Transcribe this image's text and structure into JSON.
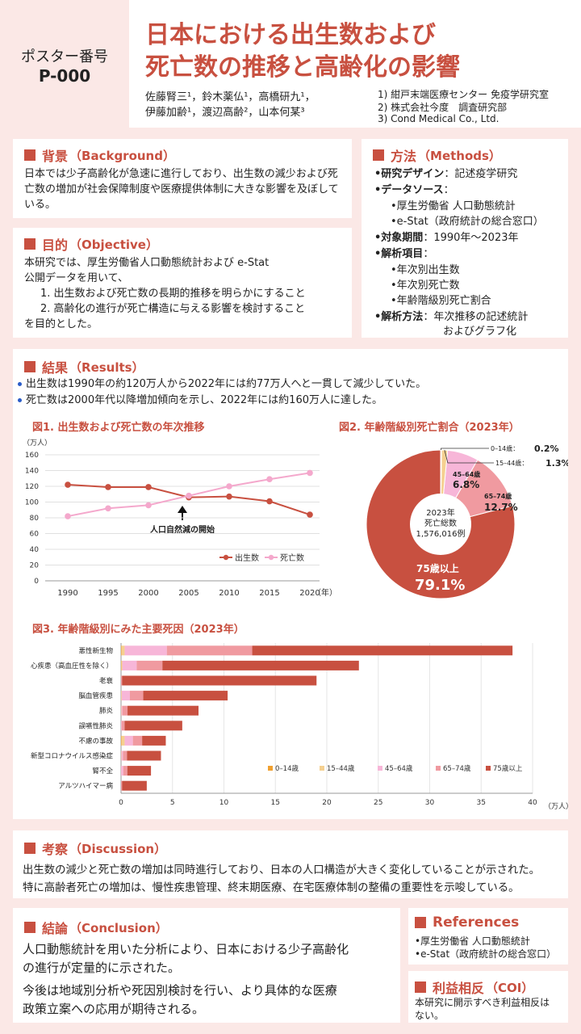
{
  "header": {
    "poster_label": "ポスター番号",
    "poster_number": "P-000",
    "title_line1": "日本における出生数および",
    "title_line2": "死亡数の推移と高齢化の影響",
    "authors_line1": "佐藤腎三¹，鈴木薬仏¹，高橋研九¹，",
    "authors_line2": "伊藤加齢¹，渡辺高齢²，山本何某³",
    "affiliations": [
      "1) 紺戸末端医療センター 免疫学研究室",
      "2) 株式会社今度　調査研究部",
      "3) Cond Medical Co., Ltd."
    ]
  },
  "background": {
    "title": "背景",
    "title_en": "（Background）",
    "text": "日本では少子高齢化が急速に進行しており、出生数の減少および死亡数の増加が社会保障制度や医療提供体制に大きな影響を及ぼしている。"
  },
  "objective": {
    "title": "目的",
    "title_en": "（Objective）",
    "line1": "本研究では、厚生労働省人口動態統計および e-Stat",
    "line2": "公開データを用いて、",
    "item1": "1. 出生数および死亡数の長期的推移を明らかにすること",
    "item2": "2. 高齢化の進行が死亡構造に与える影響を検討すること",
    "line3": "を目的とした。"
  },
  "methods": {
    "title": "方法",
    "title_en": "（Methods）",
    "design_label": "•研究デザイン",
    "design_value": "：記述疫学研究",
    "source_label": "•データソース",
    "source_colon": "：",
    "source1": "•厚生労働省 人口動態統計",
    "source2": "•e-Stat（政府統計の総合窓口）",
    "period_label": "•対象期間",
    "period_value": "：1990年～2023年",
    "items_label": "•解析項目",
    "items_colon": "：",
    "item1": "•年次別出生数",
    "item2": "•年次別死亡数",
    "item3": "•年齢階級別死亡割合",
    "method_label": "•解析方法",
    "method_value1": "：年次推移の記述統計",
    "method_value2": "およびグラフ化"
  },
  "results": {
    "title": "結果",
    "title_en": "（Results）",
    "bullet1": "出生数は1990年の約120万人から2022年には約77万人へと一貫して減少していた。",
    "bullet2": "死亡数は2000年代以降増加傾向を示し、2022年には約160万人に達した。"
  },
  "fig1": {
    "title": "図1.  出生数および死亡数の年次推移",
    "unit": "（万人）",
    "x_unit": "（年）",
    "annotation": "人口自然減の開始",
    "legend_births": "出生数",
    "legend_deaths": "死亡数"
  },
  "fig2": {
    "title": "図2.  年齢階級別死亡割合（2023年）",
    "center_line1": "2023年",
    "center_line2": "死亡総数",
    "center_line3": "1,576,016例"
  },
  "fig3": {
    "title": "図3.  年齢階級別にみた主要死因（2023年）",
    "x_unit": "（万人）"
  },
  "discussion": {
    "title": "考察",
    "title_en": "（Discussion）",
    "line1": "出生数の減少と死亡数の増加は同時進行しており、日本の人口構造が大きく変化していることが示された。",
    "line2": "特に高齢者死亡の増加は、慢性疾患管理、終末期医療、在宅医療体制の整備の重要性を示唆している。"
  },
  "conclusion": {
    "title": "結論",
    "title_en": "（Conclusion）",
    "para1_line1": "人口動態統計を用いた分析により、日本における少子高齢化",
    "para1_line2": "の進行が定量的に示された。",
    "para2_line1": "今後は地域別分析や死因別検討を行い、より具体的な医療",
    "para2_line2": "政策立案への応用が期待される。"
  },
  "references": {
    "title": "References",
    "item1": "•厚生労働省 人口動態統計",
    "item2": "•e-Stat（政府統計の総合窓口）"
  },
  "coi": {
    "title": "利益相反",
    "title_en": "（COI）",
    "line1": "本研究に開示すべき利益相反は",
    "line2": "ない。"
  },
  "colors": {
    "accent": "#c85040",
    "births": "#c85040",
    "deaths": "#f4a8cc",
    "age_0_14": "#f0a030",
    "age_15_44": "#f5d090",
    "age_45_64": "#f7b6d8",
    "age_65_74": "#f09aa0",
    "age_75": "#c85040"
  },
  "chart_data": [
    {
      "type": "line",
      "title": "図1.  出生数および死亡数の年次推移",
      "ylabel": "（万人）",
      "xlabel": "（年）",
      "x": [
        1990,
        1995,
        2000,
        2005,
        2010,
        2015,
        2020
      ],
      "ylim": [
        0,
        160
      ],
      "yticks": [
        0,
        20,
        40,
        60,
        80,
        100,
        120,
        140,
        160
      ],
      "grid": true,
      "legend": "bottom-right",
      "series": [
        {
          "name": "出生数",
          "values": [
            122,
            119,
            119,
            106,
            107,
            101,
            84
          ]
        },
        {
          "name": "死亡数",
          "values": [
            82,
            92,
            96,
            108,
            120,
            129,
            137
          ]
        }
      ],
      "annotation": {
        "text": "人口自然減の開始",
        "x": 2005
      }
    },
    {
      "type": "pie",
      "title": "図2.  年齢階級別死亡割合（2023年）",
      "total_label": "1,576,016例",
      "slices": [
        {
          "label": "0–14歳",
          "value": 0.2,
          "value_label": "0.2%"
        },
        {
          "label": "15–44歳",
          "value": 1.3,
          "value_label": "1.3%"
        },
        {
          "label": "45–64歳",
          "value": 6.8,
          "value_label": "6.8%"
        },
        {
          "label": "65–74歳",
          "value": 12.7,
          "value_label": "12.7%"
        },
        {
          "label": "75歳以上",
          "value": 79.1,
          "value_label": "79.1%"
        }
      ]
    },
    {
      "type": "bar",
      "orientation": "horizontal",
      "stacked": true,
      "title": "図3.  年齢階級別にみた主要死因（2023年）",
      "xlabel": "（万人）",
      "xlim": [
        0,
        40
      ],
      "xticks": [
        0,
        5,
        10,
        15,
        20,
        25,
        30,
        35,
        40
      ],
      "legend": "bottom-right",
      "categories": [
        "悪性新生物",
        "心疾患（高血圧性を除く）",
        "老衰",
        "脳血管疾患",
        "肺炎",
        "誤嚥性肺炎",
        "不慮の事故",
        "新型コロナウイルス感染症",
        "腎不全",
        "アルツハイマー病"
      ],
      "series": [
        {
          "name": "0–14歳",
          "values": [
            0.05,
            0.02,
            0,
            0.01,
            0.01,
            0,
            0.05,
            0.01,
            0,
            0
          ]
        },
        {
          "name": "15–44歳",
          "values": [
            0.3,
            0.1,
            0,
            0.05,
            0.02,
            0,
            0.3,
            0.02,
            0.01,
            0
          ]
        },
        {
          "name": "45–64歳",
          "values": [
            4.1,
            1.4,
            0,
            0.8,
            0.1,
            0.05,
            0.8,
            0.15,
            0.2,
            0
          ]
        },
        {
          "name": "65–74歳",
          "values": [
            8.3,
            2.5,
            0.1,
            1.3,
            0.5,
            0.3,
            0.9,
            0.4,
            0.4,
            0.1
          ]
        },
        {
          "name": "75歳以上",
          "values": [
            25.3,
            19.1,
            18.9,
            8.2,
            6.9,
            5.6,
            2.3,
            3.3,
            2.3,
            2.4
          ]
        }
      ]
    }
  ]
}
